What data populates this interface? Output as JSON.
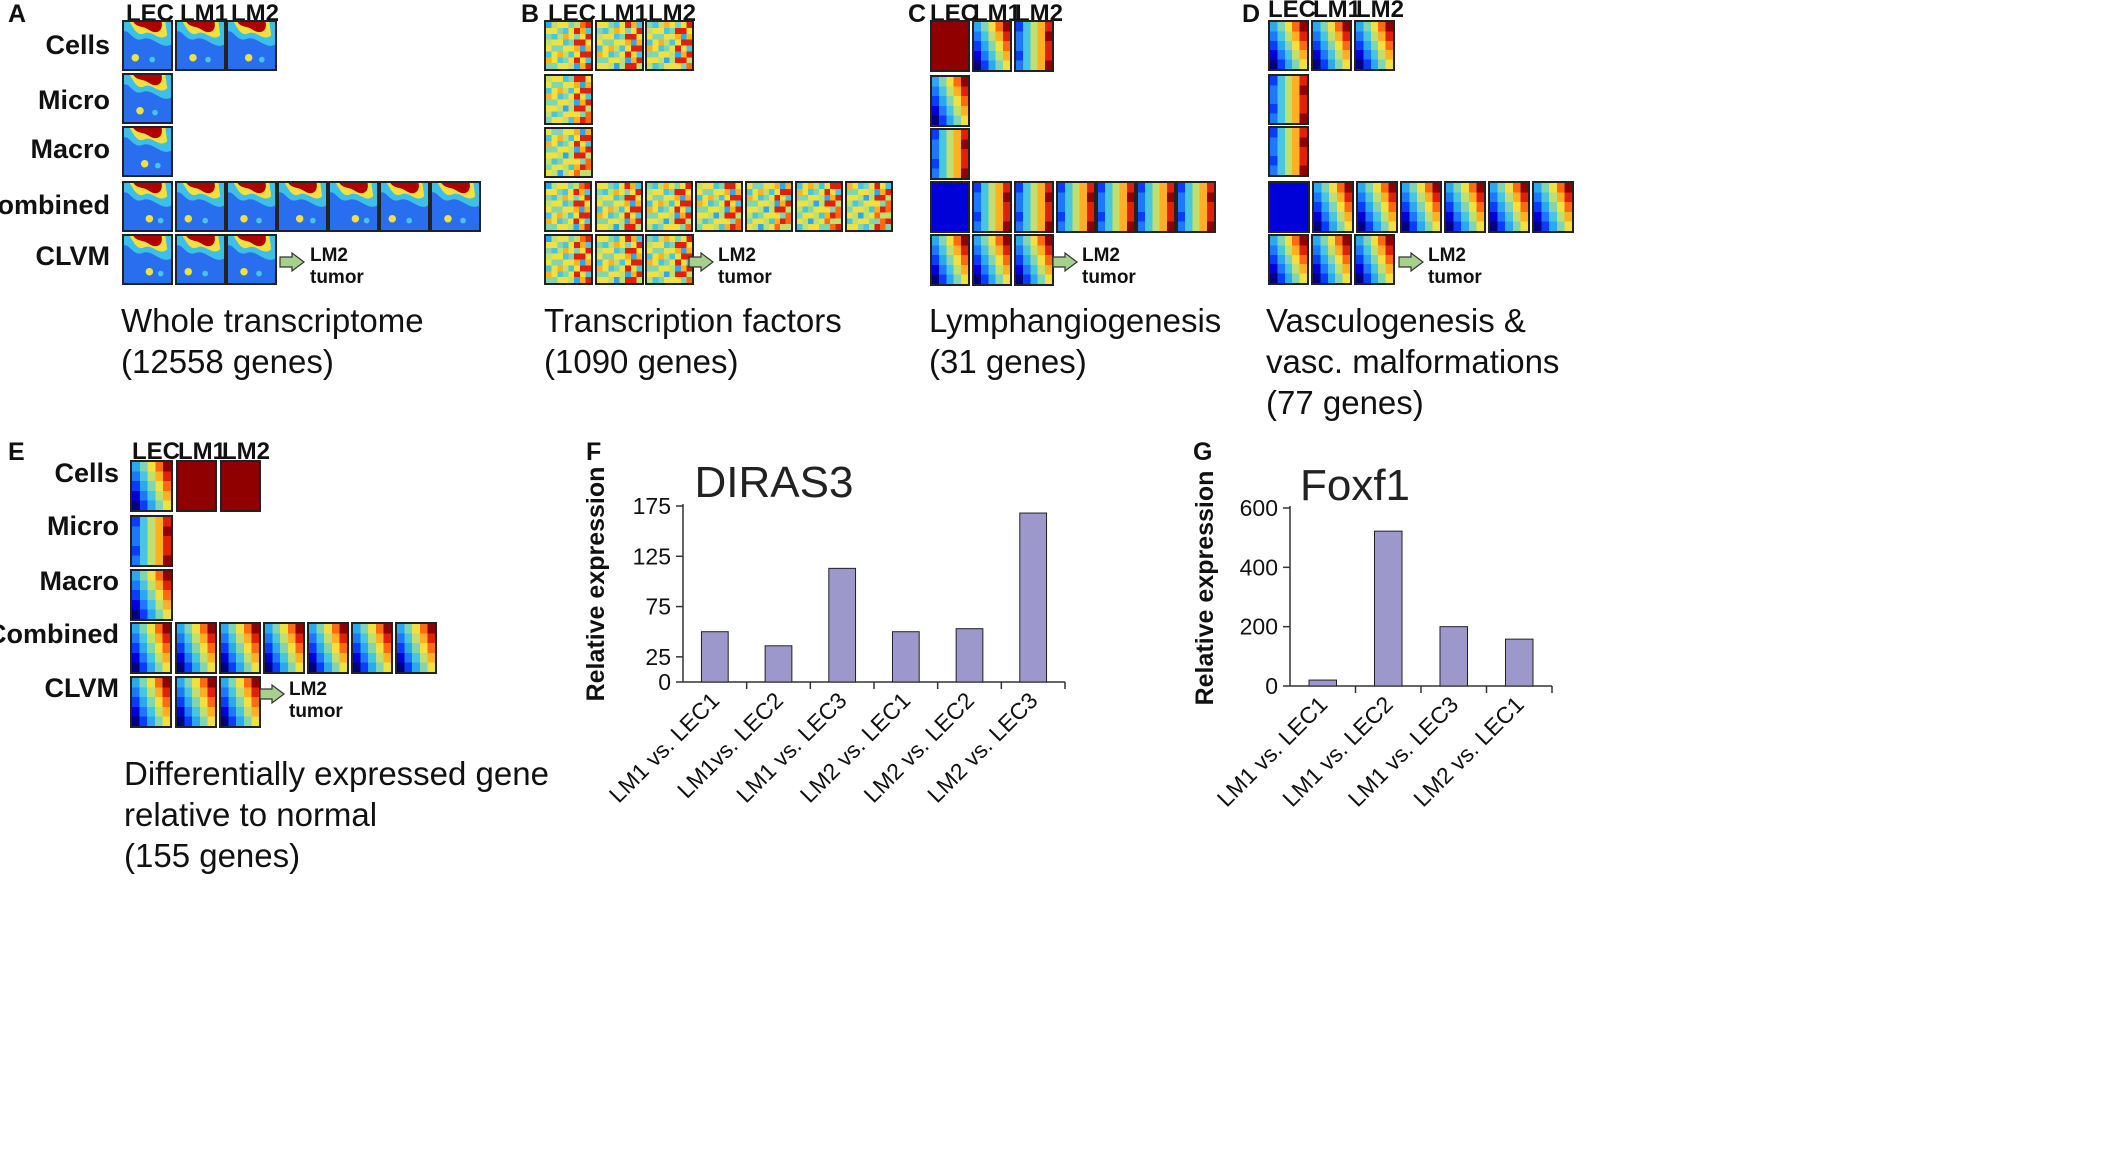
{
  "panels": {
    "A": {
      "letter": "A",
      "cols": [
        "LEC",
        "LM1",
        "LM2"
      ],
      "rows": [
        "Cells",
        "Micro",
        "Macro",
        "Combined",
        "CLVM"
      ],
      "arrow_label": [
        "LM2",
        "tumor"
      ],
      "caption": [
        "Whole transcriptome",
        "(12558 genes)"
      ]
    },
    "B": {
      "letter": "B",
      "cols": [
        "LEC",
        "LM1",
        "LM2"
      ],
      "arrow_label": [
        "LM2",
        "tumor"
      ],
      "caption": [
        "Transcription factors",
        "(1090 genes)"
      ]
    },
    "C": {
      "letter": "C",
      "cols": [
        "LEC",
        "LM1",
        "LM2"
      ],
      "arrow_label": [
        "LM2",
        "tumor"
      ],
      "caption": [
        "Lymphangiogenesis",
        "(31 genes)"
      ]
    },
    "D": {
      "letter": "D",
      "cols": [
        "LEC",
        "LM1",
        "LM2"
      ],
      "arrow_label": [
        "LM2",
        "tumor"
      ],
      "caption": [
        "Vasculogenesis &",
        "vasc. malformations",
        "(77 genes)"
      ]
    },
    "E": {
      "letter": "E",
      "cols": [
        "LEC",
        "LM1",
        "LM2"
      ],
      "rows": [
        "Cells",
        "Micro",
        "Macro",
        "Combined",
        "CLVM"
      ],
      "arrow_label": [
        "LM2",
        "tumor"
      ],
      "caption": [
        "Differentially expressed gene",
        "relative to normal",
        "(155 genes)"
      ]
    },
    "F": {
      "letter": "F"
    },
    "G": {
      "letter": "G"
    }
  },
  "colors": {
    "bar_fill": "#9c98cc",
    "bar_stroke": "#222222",
    "arrow_fill": "#a8d08d"
  },
  "chart_data": [
    {
      "panel": "F",
      "type": "bar",
      "title": "DIRAS3",
      "ylabel": "Relative expression",
      "xlabel": "",
      "categories": [
        "LM1 vs. LEC1",
        "LM1vs. LEC2",
        "LM1 vs. LEC3",
        "LM2 vs. LEC1",
        "LM2 vs. LEC2",
        "LM2 vs. LEC3"
      ],
      "values": [
        50,
        36,
        113,
        50,
        53,
        168
      ],
      "yticks": [
        0,
        25,
        75,
        125,
        175
      ],
      "ylim": [
        0,
        175
      ],
      "grid": false
    },
    {
      "panel": "G",
      "type": "bar",
      "title": "Foxf1",
      "ylabel": "Relative expression",
      "xlabel": "",
      "categories": [
        "LM1 vs. LEC1",
        "LM1 vs. LEC2",
        "LM1 vs. LEC3",
        "LM2 vs. LEC1"
      ],
      "values": [
        20,
        522,
        200,
        158
      ],
      "yticks": [
        0,
        200,
        400,
        600
      ],
      "ylim": [
        0,
        600
      ],
      "grid": false
    }
  ]
}
